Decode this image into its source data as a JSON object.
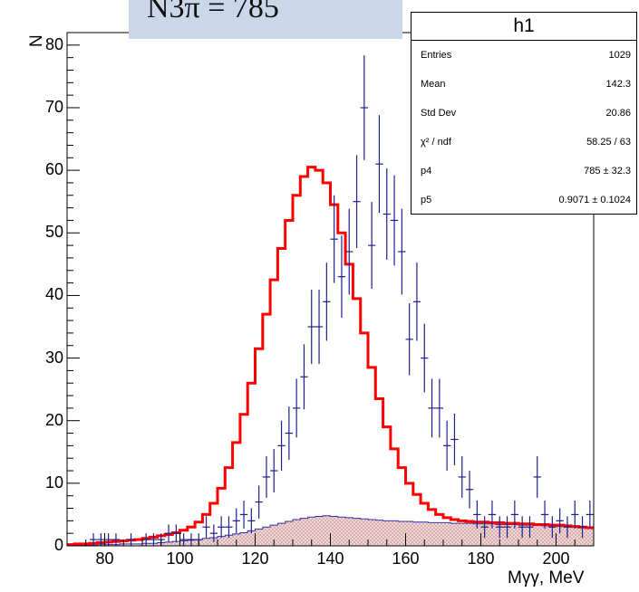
{
  "overlay_text": "N3π = 785",
  "stats_box": {
    "title": "h1",
    "rows": [
      {
        "key": "Entries",
        "value": "1029"
      },
      {
        "key": "Mean",
        "value": "142.3"
      },
      {
        "key": "Std Dev",
        "value": "20.86"
      },
      {
        "key": "χ² / ndf",
        "value": "58.25 / 63"
      },
      {
        "key": "p4",
        "value": "785  ± 32.3"
      },
      {
        "key": "p5",
        "value": "0.9071  ± 0.1024"
      }
    ]
  },
  "chart_data": {
    "type": "histogram",
    "xlabel": "Mγγ, MeV",
    "ylabel": "N",
    "xlim": [
      70,
      210
    ],
    "ylim": [
      0,
      82
    ],
    "x_ticks": [
      80,
      100,
      120,
      140,
      160,
      180,
      200
    ],
    "y_ticks": [
      0,
      10,
      20,
      30,
      40,
      50,
      60,
      70,
      80
    ],
    "bin_width": 2,
    "grid": false,
    "colors": {
      "data": "#1f1f8c",
      "fit": "#ff0000",
      "background_fill": "#e8c8c8",
      "background_line": "#3333aa"
    },
    "series": [
      {
        "name": "data",
        "style": "points with error bars",
        "x": [
          71,
          73,
          75,
          77,
          79,
          81,
          83,
          85,
          87,
          89,
          91,
          93,
          95,
          97,
          99,
          101,
          103,
          105,
          107,
          109,
          111,
          113,
          115,
          117,
          119,
          121,
          123,
          125,
          127,
          129,
          131,
          133,
          135,
          137,
          139,
          141,
          143,
          145,
          147,
          149,
          151,
          153,
          155,
          157,
          159,
          161,
          163,
          165,
          167,
          169,
          171,
          173,
          175,
          177,
          179,
          181,
          183,
          185,
          187,
          189,
          191,
          193,
          195,
          197,
          199,
          201,
          203,
          205,
          207,
          209
        ],
        "y": [
          0,
          0,
          0,
          1,
          1,
          1,
          1,
          0,
          1,
          0,
          1,
          1,
          1,
          2,
          2,
          1,
          1,
          1,
          3,
          2,
          3,
          3,
          4,
          5,
          4,
          7,
          11,
          12,
          16,
          18,
          22,
          27,
          35,
          35,
          39,
          49,
          43,
          47,
          55,
          70,
          48,
          61,
          53,
          52,
          47,
          33,
          39,
          30,
          22,
          22,
          16,
          17,
          11,
          9,
          5,
          3,
          5,
          3,
          3,
          5,
          3,
          3,
          11,
          5,
          3,
          4,
          3,
          5,
          3,
          5
        ]
      },
      {
        "name": "fit",
        "style": "red step line",
        "x": [
          71,
          73,
          75,
          77,
          79,
          81,
          83,
          85,
          87,
          89,
          91,
          93,
          95,
          97,
          99,
          101,
          103,
          105,
          107,
          109,
          111,
          113,
          115,
          117,
          119,
          121,
          123,
          125,
          127,
          129,
          131,
          133,
          135,
          137,
          139,
          141,
          143,
          145,
          147,
          149,
          151,
          153,
          155,
          157,
          159,
          161,
          163,
          165,
          167,
          169,
          171,
          173,
          175,
          177,
          179,
          181,
          183,
          185,
          187,
          189,
          191,
          193,
          195,
          197,
          199,
          201,
          203,
          205,
          207,
          209
        ],
        "y": [
          0.2,
          0.3,
          0.3,
          0.4,
          0.5,
          0.6,
          0.7,
          0.8,
          0.9,
          1.0,
          1.2,
          1.4,
          1.6,
          1.8,
          2.1,
          2.5,
          3.0,
          3.8,
          5.0,
          6.8,
          9.2,
          12.5,
          16.5,
          21.0,
          26.0,
          31.5,
          37.0,
          42.5,
          47.5,
          52.0,
          56.0,
          59.0,
          60.5,
          60.0,
          58.0,
          54.5,
          50.0,
          45.0,
          39.5,
          34.0,
          28.5,
          23.5,
          19.0,
          15.5,
          12.5,
          10.0,
          8.2,
          6.8,
          5.8,
          5.0,
          4.5,
          4.2,
          4.0,
          3.9,
          3.8,
          3.8,
          3.7,
          3.7,
          3.6,
          3.6,
          3.5,
          3.5,
          3.4,
          3.4,
          3.3,
          3.3,
          3.2,
          3.1,
          3.0,
          2.9
        ]
      },
      {
        "name": "background",
        "style": "hatched filled histogram",
        "x": [
          71,
          73,
          75,
          77,
          79,
          81,
          83,
          85,
          87,
          89,
          91,
          93,
          95,
          97,
          99,
          101,
          103,
          105,
          107,
          109,
          111,
          113,
          115,
          117,
          119,
          121,
          123,
          125,
          127,
          129,
          131,
          133,
          135,
          137,
          139,
          141,
          143,
          145,
          147,
          149,
          151,
          153,
          155,
          157,
          159,
          161,
          163,
          165,
          167,
          169,
          171,
          173,
          175,
          177,
          179,
          181,
          183,
          185,
          187,
          189,
          191,
          193,
          195,
          197,
          199,
          201,
          203,
          205,
          207,
          209
        ],
        "y": [
          0.1,
          0.1,
          0.1,
          0.1,
          0.2,
          0.2,
          0.2,
          0.3,
          0.3,
          0.3,
          0.4,
          0.4,
          0.5,
          0.6,
          0.7,
          0.8,
          0.9,
          1.0,
          1.2,
          1.3,
          1.5,
          1.7,
          1.9,
          2.1,
          2.4,
          2.7,
          3.0,
          3.3,
          3.6,
          3.9,
          4.2,
          4.4,
          4.6,
          4.7,
          4.8,
          4.7,
          4.6,
          4.5,
          4.4,
          4.3,
          4.2,
          4.1,
          4.0,
          4.0,
          3.9,
          3.9,
          3.8,
          3.8,
          3.7,
          3.7,
          3.7,
          3.6,
          3.6,
          3.6,
          3.5,
          3.5,
          3.5,
          3.4,
          3.4,
          3.4,
          3.3,
          3.3,
          3.3,
          3.2,
          3.2,
          3.1,
          3.1,
          3.0,
          2.9,
          2.8
        ]
      }
    ]
  }
}
